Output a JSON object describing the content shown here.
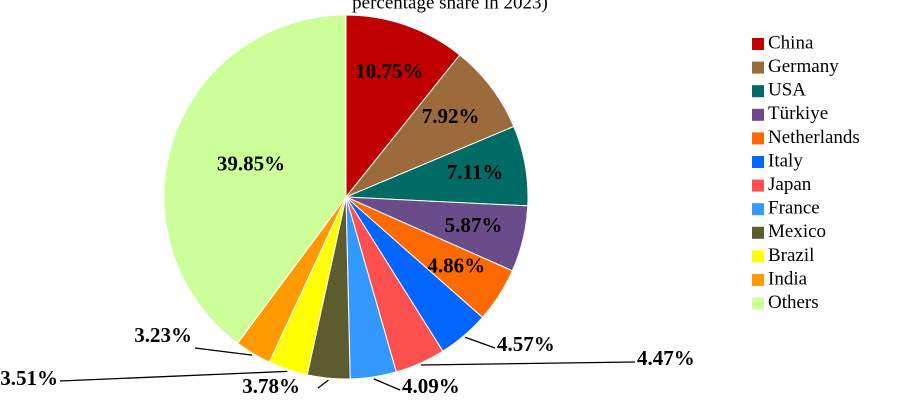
{
  "chart_data": {
    "type": "pie",
    "title": "percentage share in 2023)",
    "categories": [
      "China",
      "Germany",
      "USA",
      "Türkiye",
      "Netherlands",
      "Italy",
      "Japan",
      "France",
      "Mexico",
      "Brazil",
      "India",
      "Others"
    ],
    "values": [
      10.75,
      7.92,
      7.11,
      5.87,
      4.86,
      4.57,
      4.47,
      4.09,
      3.78,
      3.51,
      3.23,
      39.85
    ],
    "value_labels": [
      "10.75%",
      "7.92%",
      "7.11%",
      "5.87%",
      "4.86%",
      "4.57%",
      "4.47%",
      "4.09%",
      "3.78%",
      "3.51%",
      "3.23%",
      "39.85%"
    ],
    "colors": [
      "#c00000",
      "#9c6b3c",
      "#006c65",
      "#6b4c8a",
      "#ff6a00",
      "#0066ff",
      "#ff5050",
      "#3399ff",
      "#5c5c2e",
      "#ffff00",
      "#ff9900",
      "#ccff99"
    ],
    "legend": "right"
  }
}
